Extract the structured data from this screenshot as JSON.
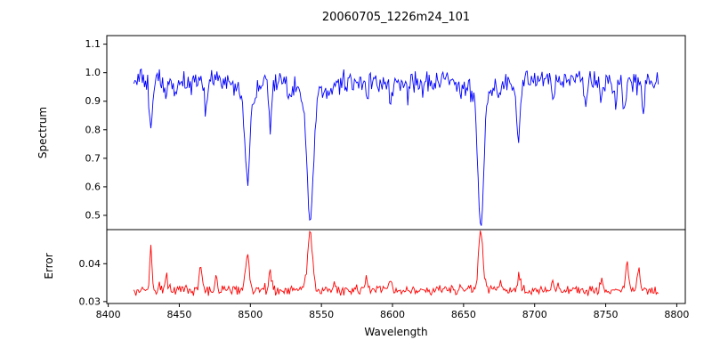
{
  "figure": {
    "background": "#ffffff"
  },
  "chart_data": {
    "type": "line",
    "title": "20060705_1226m24_101",
    "xlabel": "Wavelength",
    "xlim": [
      8399,
      8806
    ],
    "xticks": [
      8400,
      8450,
      8500,
      8550,
      8600,
      8650,
      8700,
      8750,
      8800
    ],
    "xtick_labels": [
      "8400",
      "8450",
      "8500",
      "8550",
      "8600",
      "8650",
      "8700",
      "8750",
      "8800"
    ],
    "legend": "none",
    "grid": false,
    "panels": [
      {
        "name": "spectrum",
        "ylabel": "Spectrum",
        "ylim": [
          0.45,
          1.13
        ],
        "yticks": [
          0.5,
          0.6,
          0.7,
          0.8,
          0.9,
          1.0,
          1.1
        ],
        "ytick_labels": [
          "0.5",
          "0.6",
          "0.7",
          "0.8",
          "0.9",
          "1.0",
          "1.1"
        ],
        "series": {
          "name": "spectrum",
          "color": "#0000ff",
          "x_start": 8418,
          "x_end": 8787,
          "x_step": 0.75,
          "continuum": 0.972,
          "noise_amp": 0.045,
          "absorption_lines": [
            {
              "center": 8430.0,
              "depth": 0.155,
              "sigma": 1.1
            },
            {
              "center": 8440.5,
              "depth": 0.07,
              "sigma": 0.9
            },
            {
              "center": 8447.5,
              "depth": 0.06,
              "sigma": 0.9
            },
            {
              "center": 8468.5,
              "depth": 0.09,
              "sigma": 1.1
            },
            {
              "center": 8498.0,
              "depth": 0.3,
              "sigma": 1.8,
              "wing_depth": 0.05,
              "wing_sigma": 6
            },
            {
              "center": 8514.1,
              "depth": 0.16,
              "sigma": 1.1
            },
            {
              "center": 8527.0,
              "depth": 0.05,
              "sigma": 0.9
            },
            {
              "center": 8542.1,
              "depth": 0.43,
              "sigma": 2.2,
              "wing_depth": 0.06,
              "wing_sigma": 8
            },
            {
              "center": 8582.3,
              "depth": 0.06,
              "sigma": 0.9
            },
            {
              "center": 8598.8,
              "depth": 0.07,
              "sigma": 0.9
            },
            {
              "center": 8611.0,
              "depth": 0.05,
              "sigma": 0.9
            },
            {
              "center": 8621.0,
              "depth": 0.05,
              "sigma": 0.9
            },
            {
              "center": 8648.0,
              "depth": 0.05,
              "sigma": 0.9
            },
            {
              "center": 8662.1,
              "depth": 0.44,
              "sigma": 2.0,
              "wing_depth": 0.06,
              "wing_sigma": 7
            },
            {
              "center": 8674.7,
              "depth": 0.07,
              "sigma": 0.9
            },
            {
              "center": 8688.6,
              "depth": 0.2,
              "sigma": 1.2
            },
            {
              "center": 8713.2,
              "depth": 0.07,
              "sigma": 0.9
            },
            {
              "center": 8736.0,
              "depth": 0.1,
              "sigma": 1.0
            },
            {
              "center": 8747.0,
              "depth": 0.07,
              "sigma": 0.9
            },
            {
              "center": 8757.0,
              "depth": 0.09,
              "sigma": 0.9
            },
            {
              "center": 8763.0,
              "depth": 0.1,
              "sigma": 0.9
            },
            {
              "center": 8776.5,
              "depth": 0.09,
              "sigma": 0.9
            }
          ]
        }
      },
      {
        "name": "error",
        "ylabel": "Error",
        "ylim": [
          0.0295,
          0.049
        ],
        "yticks": [
          0.03,
          0.04
        ],
        "ytick_labels": [
          "0.03",
          "0.04"
        ],
        "series": {
          "name": "error",
          "color": "#ff0000",
          "x_start": 8418,
          "x_end": 8787,
          "x_step": 0.75,
          "baseline": 0.033,
          "noise_amp": 0.0016,
          "peaks": [
            {
              "center": 8430.0,
              "height": 0.0125,
              "sigma": 0.7
            },
            {
              "center": 8441.0,
              "height": 0.004,
              "sigma": 0.7
            },
            {
              "center": 8465.0,
              "height": 0.0065,
              "sigma": 0.9
            },
            {
              "center": 8476.0,
              "height": 0.004,
              "sigma": 0.8
            },
            {
              "center": 8498.0,
              "height": 0.0085,
              "sigma": 1.4
            },
            {
              "center": 8514.0,
              "height": 0.0045,
              "sigma": 0.9
            },
            {
              "center": 8542.1,
              "height": 0.0145,
              "sigma": 1.8
            },
            {
              "center": 8560.0,
              "height": 0.002,
              "sigma": 0.8
            },
            {
              "center": 8582.0,
              "height": 0.0025,
              "sigma": 0.8
            },
            {
              "center": 8599.0,
              "height": 0.0025,
              "sigma": 0.8
            },
            {
              "center": 8662.1,
              "height": 0.0148,
              "sigma": 1.6
            },
            {
              "center": 8676.0,
              "height": 0.003,
              "sigma": 0.8
            },
            {
              "center": 8689.0,
              "height": 0.0035,
              "sigma": 0.9
            },
            {
              "center": 8713.0,
              "height": 0.0025,
              "sigma": 0.8
            },
            {
              "center": 8747.0,
              "height": 0.003,
              "sigma": 0.8
            },
            {
              "center": 8765.0,
              "height": 0.0075,
              "sigma": 0.9
            },
            {
              "center": 8773.0,
              "height": 0.0055,
              "sigma": 0.9
            }
          ]
        }
      }
    ]
  }
}
